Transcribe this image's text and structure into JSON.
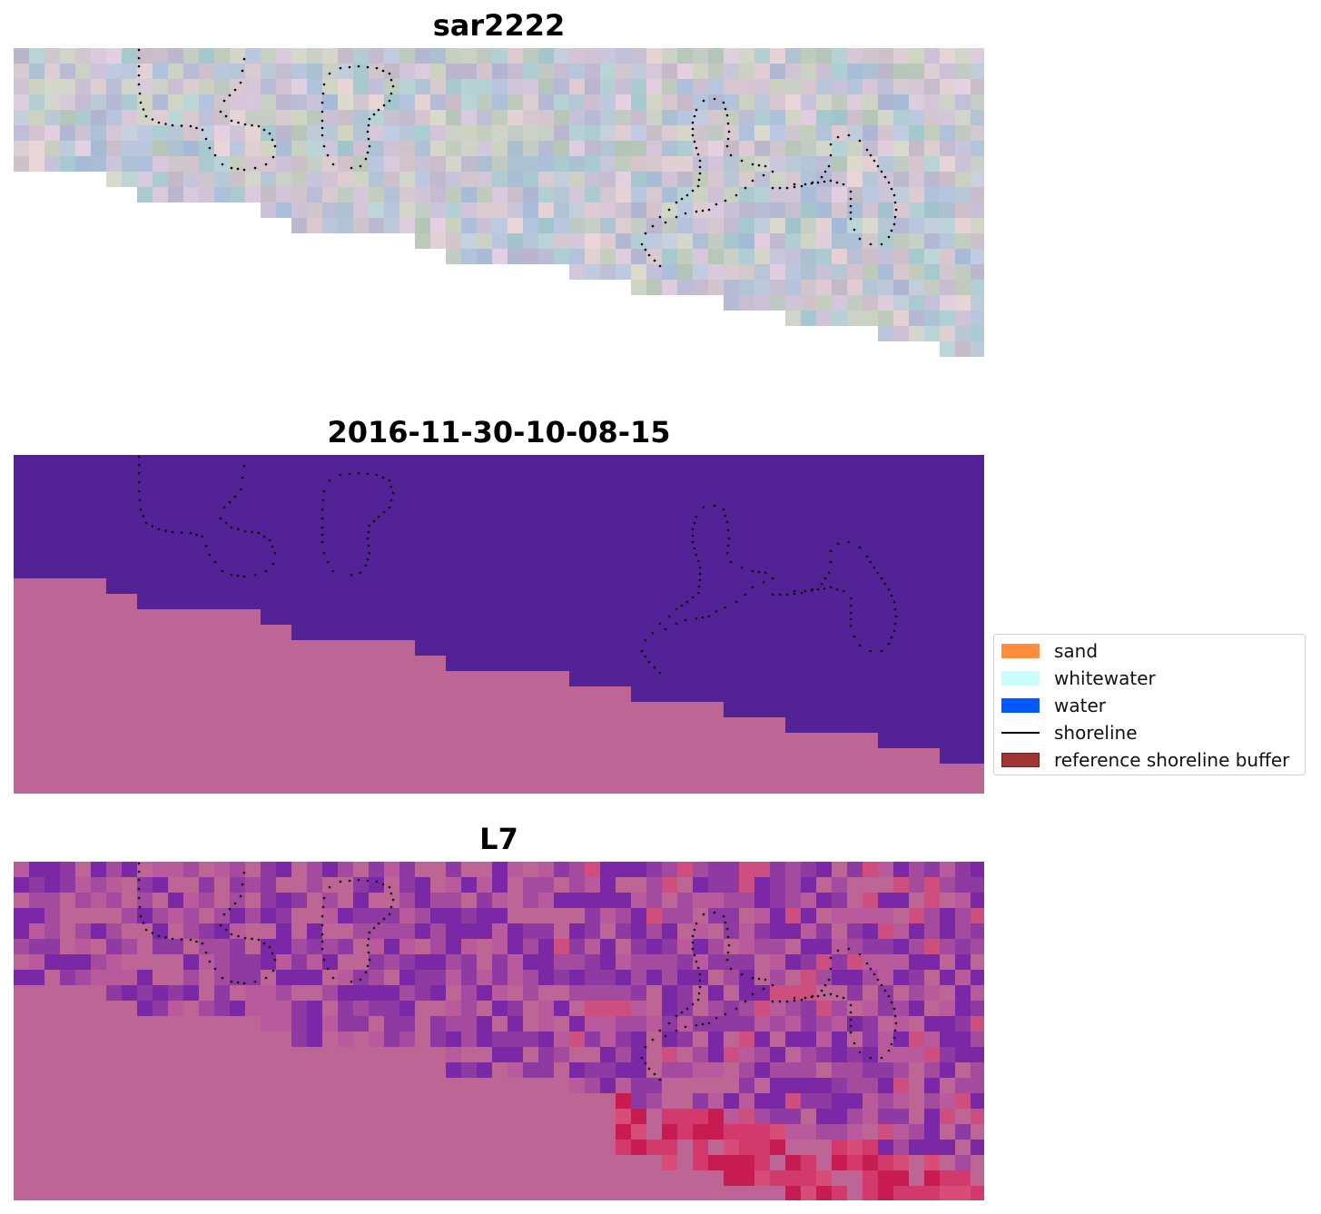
{
  "panels": [
    {
      "title": "sar2222",
      "kind": "rgb"
    },
    {
      "title": "2016-11-30-10-08-15",
      "kind": "classified"
    },
    {
      "title": "L7",
      "kind": "index"
    }
  ],
  "legend": {
    "items": [
      {
        "label": "sand",
        "color": "#ff8c3a",
        "type": "patch"
      },
      {
        "label": "whitewater",
        "color": "#c9fdfc",
        "type": "patch"
      },
      {
        "label": "water",
        "color": "#0059ff",
        "type": "patch"
      },
      {
        "label": "shoreline",
        "color": "#000000",
        "type": "line"
      },
      {
        "label": "reference shoreline buffer",
        "color": "#9b2a2a",
        "type": "patch"
      }
    ]
  },
  "colors": {
    "classified_water": "#532297",
    "classified_land": "#bd6695",
    "shoreline_dots": "#000000"
  }
}
